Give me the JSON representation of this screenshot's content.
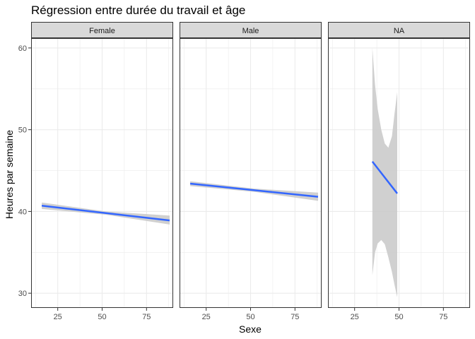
{
  "chart_data": {
    "type": "line",
    "title": "Régression entre durée du travail et âge",
    "xlabel": "Sexe",
    "ylabel": "Heures par semaine",
    "xlim": [
      10,
      90
    ],
    "ylim": [
      28.2,
      61.2
    ],
    "x_ticks": [
      25,
      50,
      75
    ],
    "y_ticks": [
      30,
      40,
      50,
      60
    ],
    "grid": true,
    "panels": [
      {
        "label": "Female",
        "fit": {
          "x": [
            16,
            88
          ],
          "y": [
            40.7,
            38.9
          ]
        },
        "band": {
          "x": [
            16,
            52,
            88
          ],
          "upper": [
            41.1,
            40.0,
            39.5
          ],
          "lower": [
            40.3,
            39.6,
            38.4
          ]
        }
      },
      {
        "label": "Male",
        "fit": {
          "x": [
            16,
            88
          ],
          "y": [
            43.4,
            41.8
          ]
        },
        "band": {
          "x": [
            16,
            52,
            88
          ],
          "upper": [
            43.7,
            42.8,
            42.3
          ],
          "lower": [
            43.1,
            42.4,
            41.3
          ]
        }
      },
      {
        "label": "NA",
        "fit": {
          "x": [
            35,
            49
          ],
          "y": [
            46.1,
            42.2
          ]
        },
        "band": {
          "x": [
            35,
            36.5,
            38,
            40,
            42,
            44,
            46,
            47.5,
            49
          ],
          "upper": [
            60.0,
            55.5,
            52.5,
            50.0,
            48.3,
            47.8,
            49.2,
            52.0,
            54.6
          ],
          "lower": [
            32.2,
            35.0,
            36.1,
            36.5,
            36.0,
            34.4,
            32.6,
            31.0,
            29.5
          ]
        }
      }
    ],
    "colors": {
      "line": "#3366ff",
      "band": "#c8c8c8",
      "strip": "#d9d9d9",
      "border": "#333333",
      "grid": "#ebebeb"
    }
  }
}
